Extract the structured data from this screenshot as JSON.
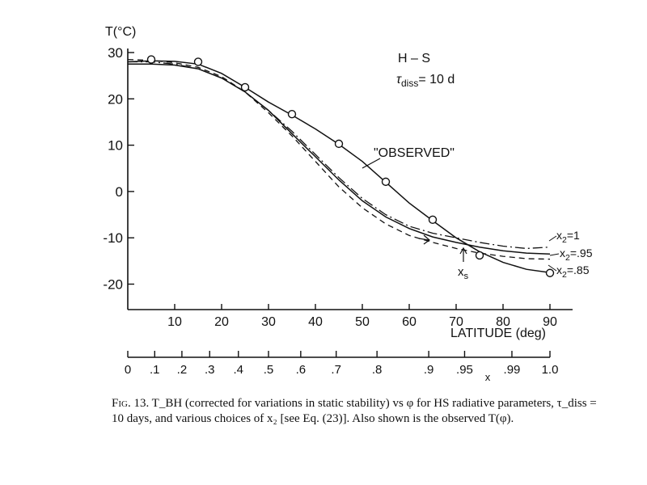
{
  "chart_data": {
    "type": "line",
    "ylabel": "T(°C)",
    "xlabel": "LATITUDE (deg)",
    "secondary_xlabel": "x",
    "xlim": [
      0,
      95
    ],
    "ylim": [
      -25,
      30
    ],
    "x_ticks": [
      10,
      20,
      30,
      40,
      50,
      60,
      70,
      80,
      90
    ],
    "y_ticks": [
      30,
      20,
      10,
      0,
      -10,
      -20
    ],
    "y_tick_labels": [
      "30",
      "20",
      "10",
      "0",
      "-10",
      "-20"
    ],
    "x_ticks_secondary": [
      {
        "label": "0",
        "value": 0
      },
      {
        "label": ".1",
        "value": 0.1
      },
      {
        "label": ".2",
        "value": 0.2
      },
      {
        "label": ".3",
        "value": 0.3
      },
      {
        "label": ".4",
        "value": 0.4
      },
      {
        "label": ".5",
        "value": 0.5
      },
      {
        "label": ".6",
        "value": 0.6
      },
      {
        "label": ".7",
        "value": 0.7
      },
      {
        "label": ".8",
        "value": 0.8
      },
      {
        "label": ".9",
        "value": 0.9
      },
      {
        "label": ".95",
        "value": 0.95
      },
      {
        "label": ".99",
        "value": 0.99
      },
      {
        "label": "1.0",
        "value": 1.0
      }
    ],
    "series": [
      {
        "name": "x₂=1",
        "style": "dashdot",
        "x": [
          0,
          5,
          10,
          15,
          20,
          25,
          30,
          35,
          40,
          45,
          50,
          55,
          60,
          65,
          70,
          75,
          80,
          85,
          90
        ],
        "y": [
          28,
          28,
          27.5,
          26.5,
          24.5,
          21.5,
          17.5,
          13,
          8,
          3,
          -1.5,
          -5,
          -7.5,
          -9,
          -10,
          -11,
          -11.8,
          -12.3,
          -12
        ]
      },
      {
        "name": "x₂=.95",
        "style": "solid",
        "x": [
          0,
          5,
          10,
          15,
          20,
          25,
          30,
          35,
          40,
          45,
          50,
          55,
          60,
          65,
          70,
          75,
          80,
          85,
          90
        ],
        "y": [
          27.5,
          27.5,
          27.3,
          26.5,
          24.5,
          21.5,
          17.5,
          12.5,
          7.5,
          2.5,
          -2,
          -5.5,
          -8,
          -9.8,
          -11,
          -12,
          -12.8,
          -13.3,
          -13.5
        ]
      },
      {
        "name": "x₂=.85",
        "style": "dashed",
        "x": [
          0,
          5,
          10,
          15,
          20,
          25,
          30,
          35,
          40,
          45,
          50,
          55,
          60,
          65,
          70,
          75,
          80,
          85,
          90
        ],
        "y": [
          28.5,
          28.3,
          27.8,
          26.8,
          24.8,
          21.5,
          17,
          12,
          6.5,
          1,
          -3.5,
          -7,
          -9.5,
          -11,
          -12.3,
          -13.3,
          -14,
          -14.5,
          -14.6
        ]
      },
      {
        "name": "\"OBSERVED\"",
        "style": "solid",
        "x": [
          0,
          5,
          10,
          15,
          20,
          25,
          30,
          35,
          40,
          45,
          50,
          55,
          60,
          65,
          70,
          75,
          80,
          85,
          90
        ],
        "y": [
          28,
          28.2,
          28.1,
          27.5,
          25.5,
          22.5,
          19.3,
          16.5,
          13.5,
          10.2,
          6.5,
          2,
          -2.5,
          -6.3,
          -10,
          -13,
          -15.3,
          -16.8,
          -17.5
        ]
      }
    ],
    "observed_points": {
      "x": [
        5,
        15,
        25,
        35,
        45,
        55,
        65,
        75,
        90
      ],
      "y": [
        28.5,
        28,
        22.5,
        16.7,
        10.3,
        2.1,
        -6.1,
        -13.8,
        -17.6
      ]
    },
    "annotations": {
      "observed_label": "\"OBSERVED\"",
      "model_label": "H – S",
      "tau_symbol": "τ",
      "tau_sub": "diss",
      "tau_value": "= 10 d",
      "xs_label": "x",
      "xs_sub": "s",
      "series_labels": [
        {
          "pre": "x",
          "sub": "2",
          "post": "=1"
        },
        {
          "pre": "x",
          "sub": "2",
          "post": "=.95"
        },
        {
          "pre": "x",
          "sub": "2",
          "post": "=.85"
        }
      ]
    },
    "grid": false,
    "legend": "inline-right"
  },
  "caption": {
    "fig_label": "Fig. 13.",
    "text": " T_BH (corrected for variations in static stability) vs φ for HS radiative parameters, τ_diss = 10 days, and various choices of x₂ [see Eq. (23)]. Also shown is the observed T(φ)."
  }
}
